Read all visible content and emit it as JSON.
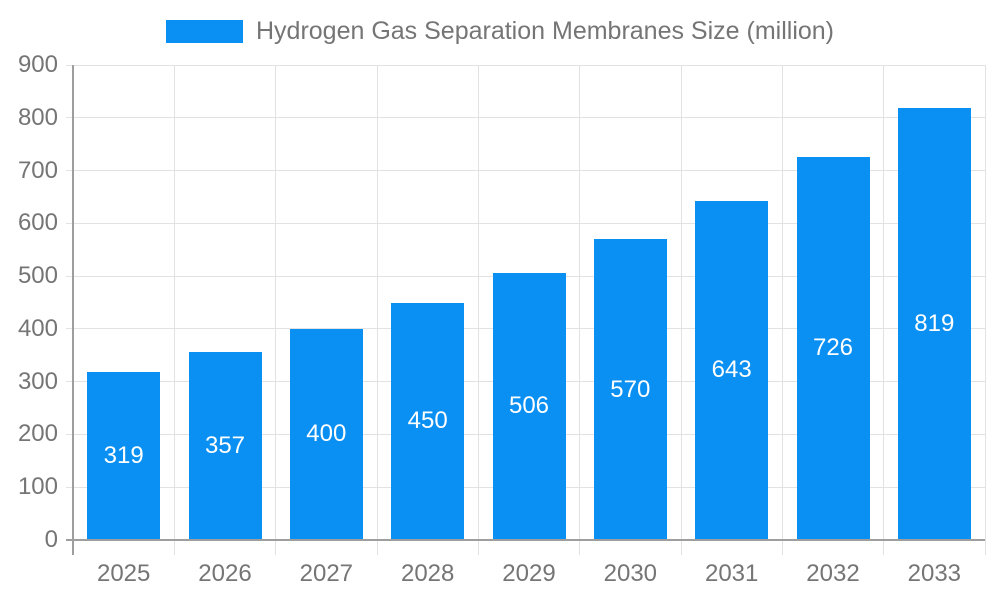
{
  "chart_data": {
    "type": "bar",
    "title": "Hydrogen Gas Separation Membranes Size (million)",
    "legend": [
      "Hydrogen Gas Separation Membranes Size (million)"
    ],
    "legend_position": "top-center",
    "categories": [
      "2025",
      "2026",
      "2027",
      "2028",
      "2029",
      "2030",
      "2031",
      "2032",
      "2033"
    ],
    "values": [
      319,
      357,
      400,
      450,
      506,
      570,
      643,
      726,
      819
    ],
    "value_labels": [
      "319",
      "357",
      "400",
      "450",
      "506",
      "570",
      "643",
      "726",
      "819"
    ],
    "value_label_placement": "inside-center",
    "xlabel": "",
    "ylabel": "",
    "ylim": [
      0,
      900
    ],
    "ytick_step": 100,
    "yticks": [
      0,
      100,
      200,
      300,
      400,
      500,
      600,
      700,
      800,
      900
    ],
    "grid": true,
    "colors": {
      "bar": "#0a8ff2",
      "grid": "#e2e2e2",
      "axis": "#9e9e9e",
      "text": "#757575",
      "value_label": "#ffffff",
      "background": "#ffffff"
    }
  }
}
